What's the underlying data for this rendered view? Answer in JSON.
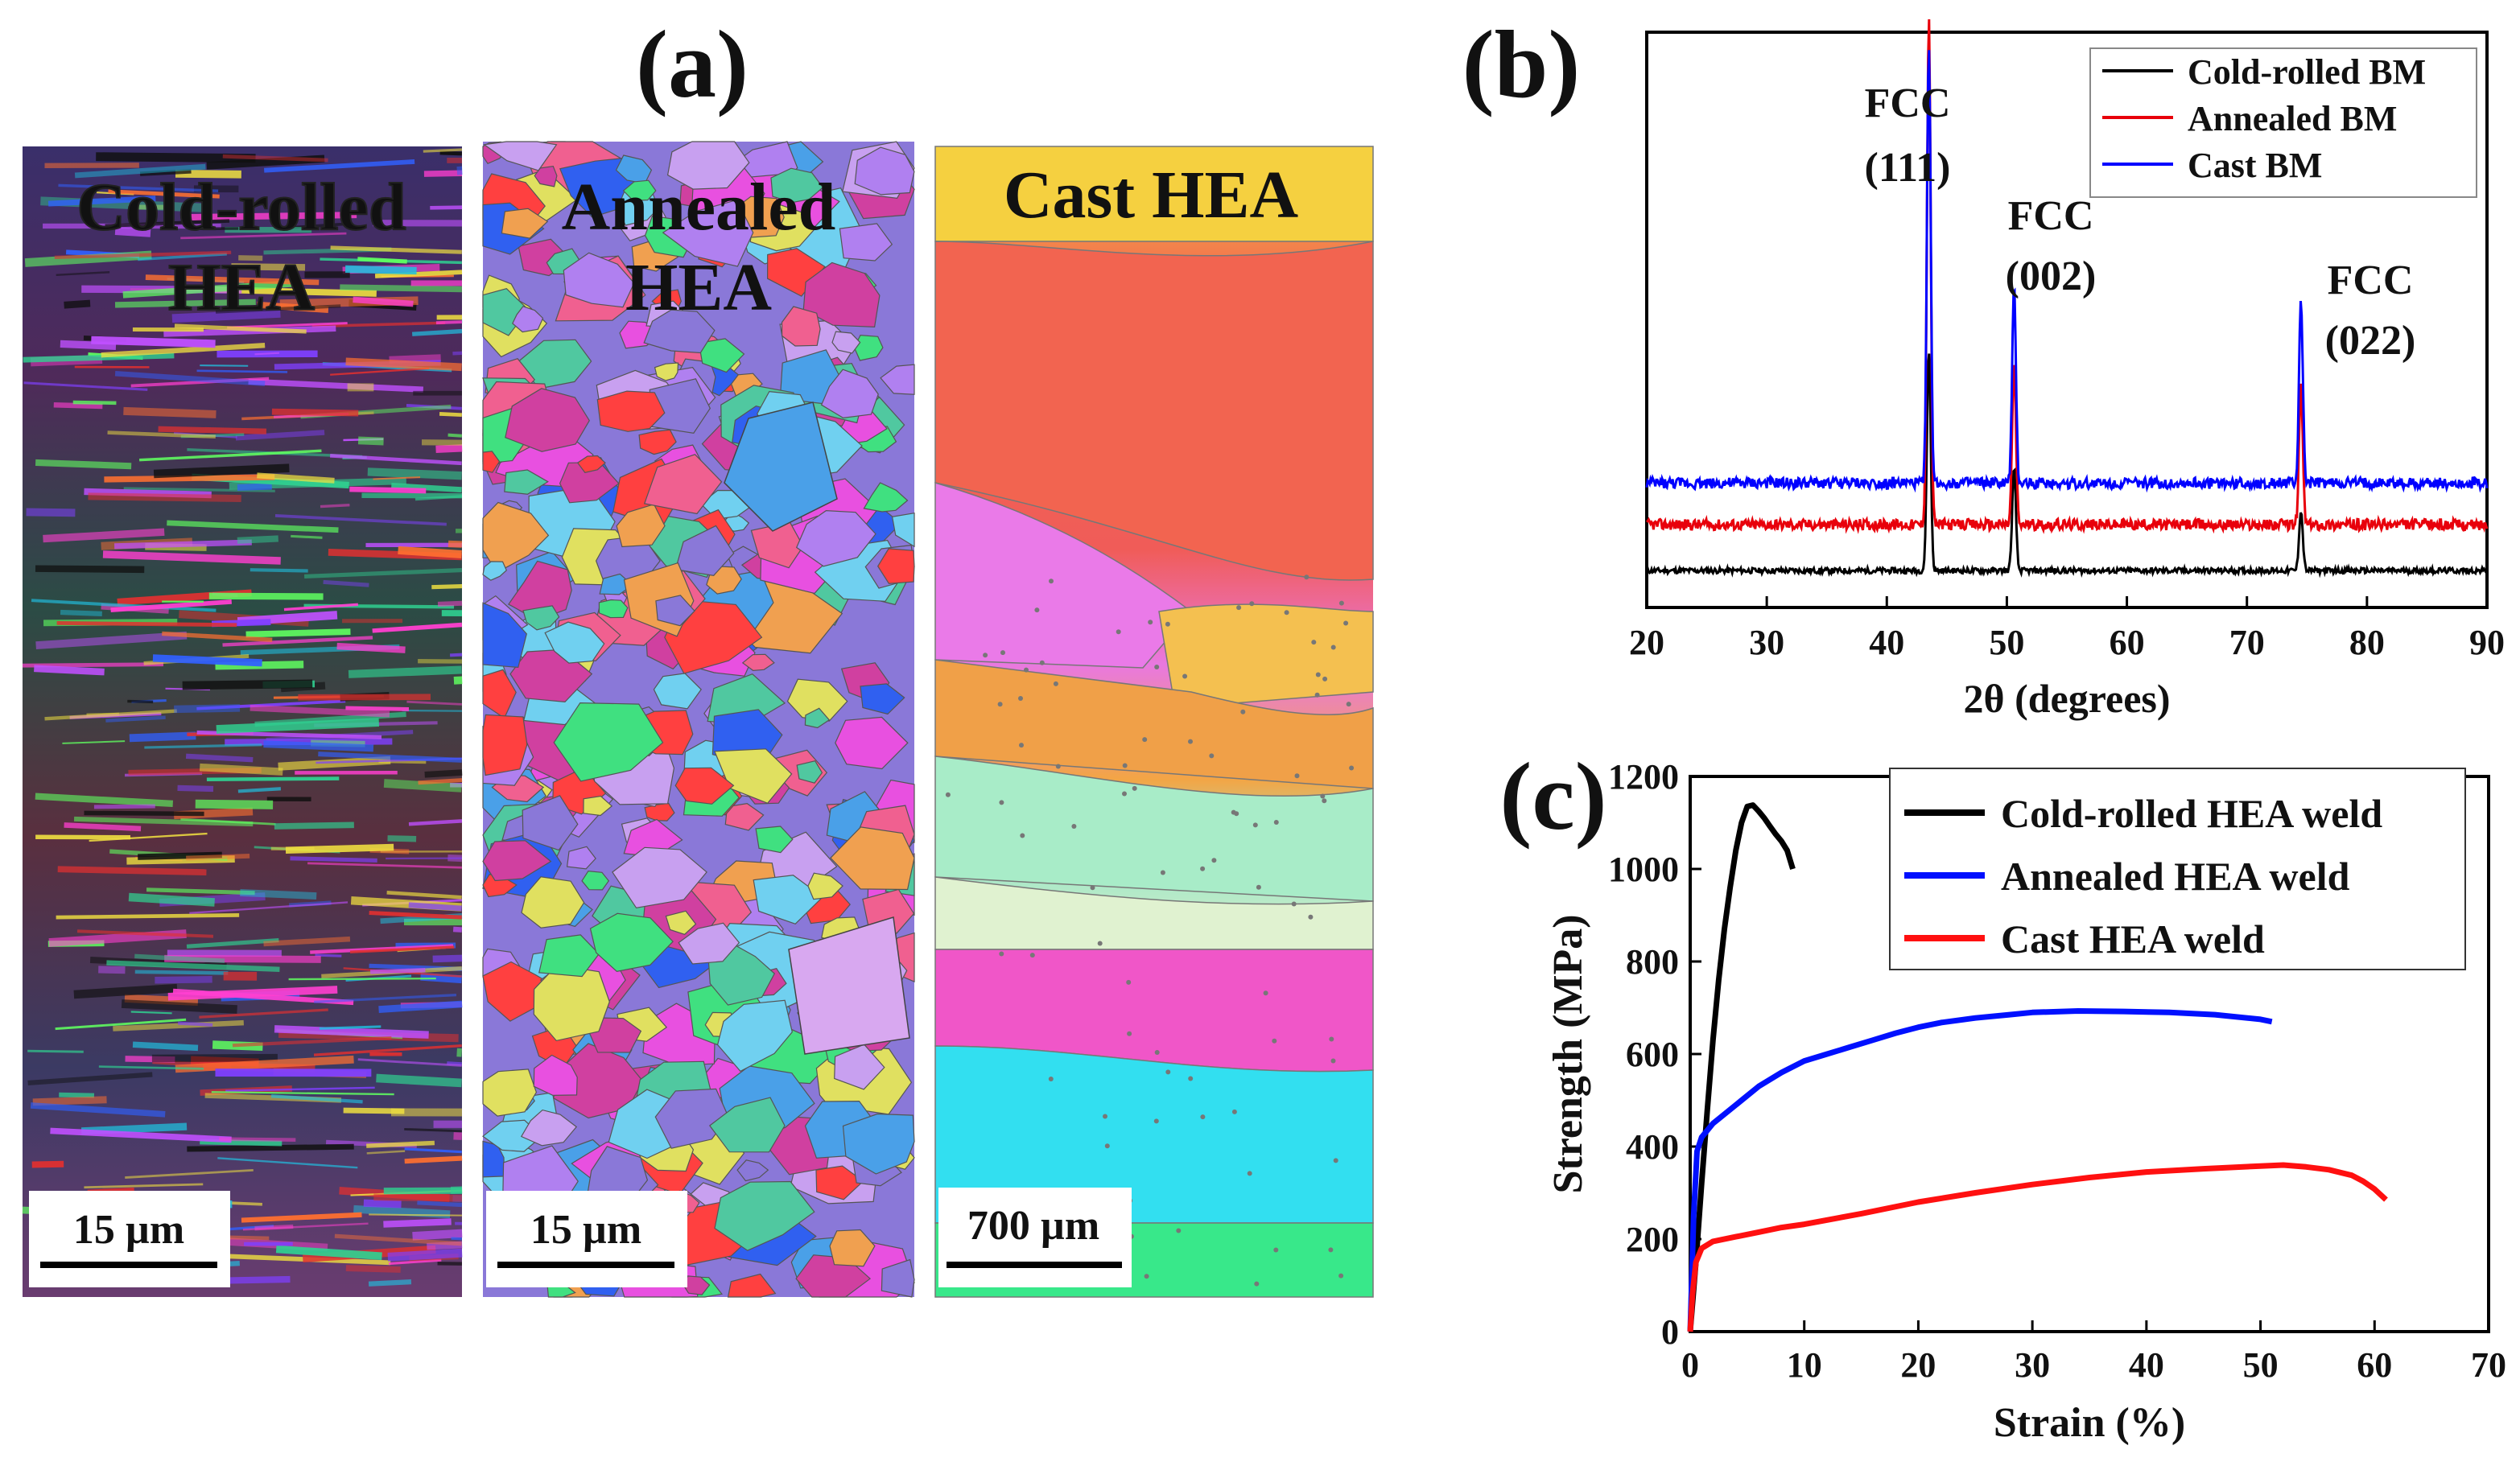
{
  "panel_a": {
    "label": "(a)",
    "maps": [
      {
        "title_line1": "Cold-rolled",
        "title_line2": "HEA",
        "scale_bar": "15 µm"
      },
      {
        "title_line1": "Annealed",
        "title_line2": "HEA",
        "scale_bar": "15 µm"
      },
      {
        "title_line1": "Cast HEA",
        "title_line2": "",
        "scale_bar": "700 µm"
      }
    ]
  },
  "chart_data": [
    {
      "panel": "(b)",
      "type": "line",
      "title": "",
      "xlabel": "2θ (degrees)",
      "ylabel": "",
      "xlim": [
        20,
        90
      ],
      "xticks": [
        20,
        30,
        40,
        50,
        60,
        70,
        80,
        90
      ],
      "y_ticks_shown": false,
      "legend": "top-right",
      "peaks": [
        {
          "label_line1": "FCC",
          "label_line2": "(111)",
          "x": 43.5
        },
        {
          "label_line1": "FCC",
          "label_line2": "(002)",
          "x": 50.6
        },
        {
          "label_line1": "FCC",
          "label_line2": "(022)",
          "x": 74.5
        }
      ],
      "series": [
        {
          "name": "Cold-rolled BM",
          "color": "#000000",
          "baseline": 0.08,
          "peak_heights": [
            0.48,
            0.22,
            0.13
          ],
          "noise": 0.006
        },
        {
          "name": "Annealed BM",
          "color": "#e8000b",
          "baseline": 0.18,
          "peak_heights": [
            1.1,
            0.35,
            0.3
          ],
          "noise": 0.012
        },
        {
          "name": "Cast BM",
          "color": "#0000ff",
          "baseline": 0.27,
          "peak_heights": [
            0.95,
            0.42,
            0.4
          ],
          "noise": 0.012
        }
      ]
    },
    {
      "panel": "(c)",
      "type": "line",
      "title": "",
      "xlabel": "Strain (%)",
      "ylabel": "Strength (MPa)",
      "xlim": [
        0,
        70
      ],
      "ylim": [
        0,
        1200
      ],
      "xticks": [
        0,
        10,
        20,
        30,
        40,
        50,
        60,
        70
      ],
      "yticks": [
        0,
        200,
        400,
        600,
        800,
        1000,
        1200
      ],
      "legend": "top-right",
      "series": [
        {
          "name": "Cold-rolled HEA weld",
          "color": "#000000",
          "x": [
            0,
            0.5,
            1,
            1.5,
            2,
            2.5,
            3,
            3.5,
            4,
            4.5,
            5,
            5.5,
            6,
            6.5,
            7,
            7.5,
            8,
            8.5,
            9
          ],
          "y": [
            0,
            150,
            320,
            480,
            630,
            760,
            870,
            960,
            1040,
            1100,
            1135,
            1138,
            1125,
            1110,
            1092,
            1075,
            1060,
            1040,
            1000
          ]
        },
        {
          "name": "Annealed HEA weld",
          "color": "#0010ff",
          "x": [
            0,
            0.3,
            0.6,
            1,
            2,
            4,
            6,
            8,
            10,
            12,
            14,
            16,
            18,
            20,
            22,
            25,
            28,
            30,
            34,
            38,
            42,
            46,
            50,
            51
          ],
          "y": [
            0,
            250,
            390,
            420,
            450,
            490,
            530,
            560,
            585,
            600,
            615,
            630,
            645,
            658,
            668,
            678,
            685,
            690,
            693,
            692,
            690,
            685,
            675,
            670
          ]
        },
        {
          "name": "Cast HEA weld",
          "color": "#ff1010",
          "x": [
            0,
            0.2,
            0.5,
            1,
            2,
            4,
            6,
            8,
            10,
            15,
            20,
            25,
            30,
            35,
            40,
            45,
            50,
            52,
            54,
            56,
            58,
            59,
            60,
            61
          ],
          "y": [
            0,
            80,
            150,
            180,
            195,
            205,
            215,
            225,
            232,
            255,
            280,
            300,
            318,
            333,
            345,
            352,
            358,
            360,
            356,
            350,
            338,
            325,
            308,
            285
          ]
        }
      ]
    }
  ]
}
